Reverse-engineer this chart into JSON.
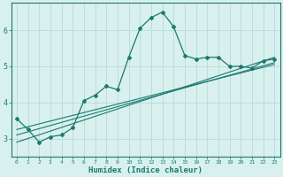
{
  "xlabel": "Humidex (Indice chaleur)",
  "ylabel": "",
  "bg_color": "#d8f0ee",
  "grid_color": "#b8dbd8",
  "line_color": "#1a7a6e",
  "xlim": [
    -0.5,
    23.5
  ],
  "ylim": [
    2.5,
    6.75
  ],
  "xticks": [
    0,
    1,
    2,
    3,
    4,
    5,
    6,
    7,
    8,
    9,
    10,
    11,
    12,
    13,
    14,
    15,
    16,
    17,
    18,
    19,
    20,
    21,
    22,
    23
  ],
  "yticks": [
    3,
    4,
    5,
    6
  ],
  "curve1_x": [
    0,
    1,
    2,
    3,
    4,
    5,
    6,
    7,
    8,
    9,
    10,
    11,
    12,
    13,
    14,
    15,
    16,
    17,
    18,
    19,
    20,
    21,
    22,
    23
  ],
  "curve1_y": [
    3.55,
    3.25,
    2.9,
    3.05,
    3.1,
    3.3,
    4.05,
    4.2,
    4.45,
    4.35,
    5.25,
    6.05,
    6.35,
    6.5,
    6.1,
    5.3,
    5.2,
    5.25,
    5.25,
    5.0,
    5.0,
    4.95,
    5.15,
    5.2
  ],
  "line1_x": [
    0,
    23
  ],
  "line1_y": [
    2.9,
    5.25
  ],
  "line2_x": [
    0,
    23
  ],
  "line2_y": [
    3.1,
    5.1
  ],
  "line3_x": [
    0,
    23
  ],
  "line3_y": [
    3.25,
    5.05
  ]
}
